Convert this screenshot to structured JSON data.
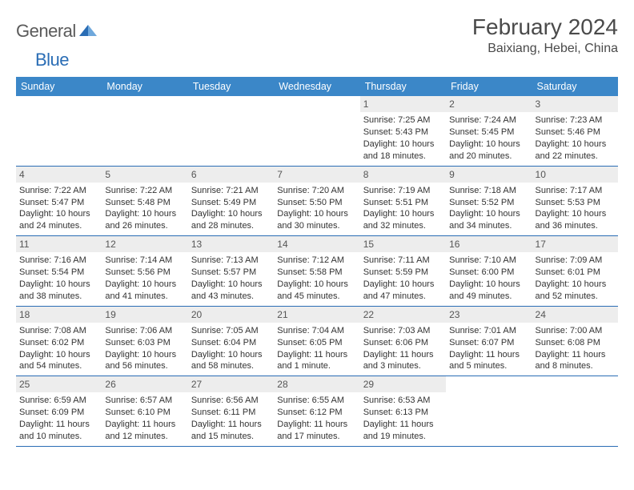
{
  "brand": {
    "part1": "General",
    "part2": "Blue"
  },
  "title": "February 2024",
  "location": "Baixiang, Hebei, China",
  "colors": {
    "header_bg": "#3b87c8",
    "header_text": "#ffffff",
    "rule": "#2a6db5",
    "daynum_bg": "#ededed",
    "text": "#333333",
    "brand_gray": "#5a5a5a",
    "brand_blue": "#2a6db5"
  },
  "day_headers": [
    "Sunday",
    "Monday",
    "Tuesday",
    "Wednesday",
    "Thursday",
    "Friday",
    "Saturday"
  ],
  "weeks": [
    [
      null,
      null,
      null,
      null,
      {
        "n": "1",
        "sunrise": "7:25 AM",
        "sunset": "5:43 PM",
        "daylight": "10 hours and 18 minutes."
      },
      {
        "n": "2",
        "sunrise": "7:24 AM",
        "sunset": "5:45 PM",
        "daylight": "10 hours and 20 minutes."
      },
      {
        "n": "3",
        "sunrise": "7:23 AM",
        "sunset": "5:46 PM",
        "daylight": "10 hours and 22 minutes."
      }
    ],
    [
      {
        "n": "4",
        "sunrise": "7:22 AM",
        "sunset": "5:47 PM",
        "daylight": "10 hours and 24 minutes."
      },
      {
        "n": "5",
        "sunrise": "7:22 AM",
        "sunset": "5:48 PM",
        "daylight": "10 hours and 26 minutes."
      },
      {
        "n": "6",
        "sunrise": "7:21 AM",
        "sunset": "5:49 PM",
        "daylight": "10 hours and 28 minutes."
      },
      {
        "n": "7",
        "sunrise": "7:20 AM",
        "sunset": "5:50 PM",
        "daylight": "10 hours and 30 minutes."
      },
      {
        "n": "8",
        "sunrise": "7:19 AM",
        "sunset": "5:51 PM",
        "daylight": "10 hours and 32 minutes."
      },
      {
        "n": "9",
        "sunrise": "7:18 AM",
        "sunset": "5:52 PM",
        "daylight": "10 hours and 34 minutes."
      },
      {
        "n": "10",
        "sunrise": "7:17 AM",
        "sunset": "5:53 PM",
        "daylight": "10 hours and 36 minutes."
      }
    ],
    [
      {
        "n": "11",
        "sunrise": "7:16 AM",
        "sunset": "5:54 PM",
        "daylight": "10 hours and 38 minutes."
      },
      {
        "n": "12",
        "sunrise": "7:14 AM",
        "sunset": "5:56 PM",
        "daylight": "10 hours and 41 minutes."
      },
      {
        "n": "13",
        "sunrise": "7:13 AM",
        "sunset": "5:57 PM",
        "daylight": "10 hours and 43 minutes."
      },
      {
        "n": "14",
        "sunrise": "7:12 AM",
        "sunset": "5:58 PM",
        "daylight": "10 hours and 45 minutes."
      },
      {
        "n": "15",
        "sunrise": "7:11 AM",
        "sunset": "5:59 PM",
        "daylight": "10 hours and 47 minutes."
      },
      {
        "n": "16",
        "sunrise": "7:10 AM",
        "sunset": "6:00 PM",
        "daylight": "10 hours and 49 minutes."
      },
      {
        "n": "17",
        "sunrise": "7:09 AM",
        "sunset": "6:01 PM",
        "daylight": "10 hours and 52 minutes."
      }
    ],
    [
      {
        "n": "18",
        "sunrise": "7:08 AM",
        "sunset": "6:02 PM",
        "daylight": "10 hours and 54 minutes."
      },
      {
        "n": "19",
        "sunrise": "7:06 AM",
        "sunset": "6:03 PM",
        "daylight": "10 hours and 56 minutes."
      },
      {
        "n": "20",
        "sunrise": "7:05 AM",
        "sunset": "6:04 PM",
        "daylight": "10 hours and 58 minutes."
      },
      {
        "n": "21",
        "sunrise": "7:04 AM",
        "sunset": "6:05 PM",
        "daylight": "11 hours and 1 minute."
      },
      {
        "n": "22",
        "sunrise": "7:03 AM",
        "sunset": "6:06 PM",
        "daylight": "11 hours and 3 minutes."
      },
      {
        "n": "23",
        "sunrise": "7:01 AM",
        "sunset": "6:07 PM",
        "daylight": "11 hours and 5 minutes."
      },
      {
        "n": "24",
        "sunrise": "7:00 AM",
        "sunset": "6:08 PM",
        "daylight": "11 hours and 8 minutes."
      }
    ],
    [
      {
        "n": "25",
        "sunrise": "6:59 AM",
        "sunset": "6:09 PM",
        "daylight": "11 hours and 10 minutes."
      },
      {
        "n": "26",
        "sunrise": "6:57 AM",
        "sunset": "6:10 PM",
        "daylight": "11 hours and 12 minutes."
      },
      {
        "n": "27",
        "sunrise": "6:56 AM",
        "sunset": "6:11 PM",
        "daylight": "11 hours and 15 minutes."
      },
      {
        "n": "28",
        "sunrise": "6:55 AM",
        "sunset": "6:12 PM",
        "daylight": "11 hours and 17 minutes."
      },
      {
        "n": "29",
        "sunrise": "6:53 AM",
        "sunset": "6:13 PM",
        "daylight": "11 hours and 19 minutes."
      },
      null,
      null
    ]
  ]
}
